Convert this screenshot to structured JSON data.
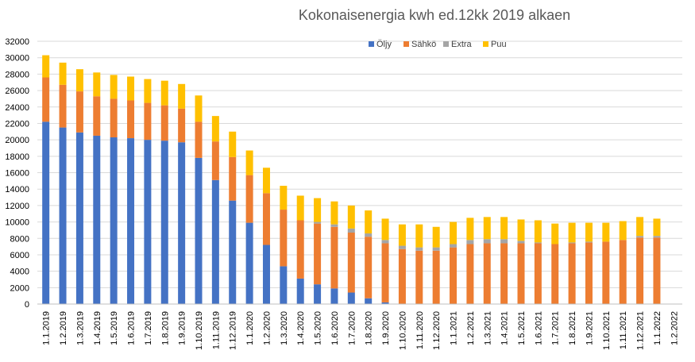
{
  "chart_data": {
    "type": "bar",
    "stacked": true,
    "title": "Kokonaisenergia kwh ed.12kk 2019 alkaen",
    "xlabel": "",
    "ylabel": "",
    "ylim": [
      0,
      32000
    ],
    "yticks": [
      0,
      2000,
      4000,
      6000,
      8000,
      10000,
      12000,
      14000,
      16000,
      18000,
      20000,
      22000,
      24000,
      26000,
      28000,
      30000,
      32000
    ],
    "grid": true,
    "legend_position": "top",
    "categories": [
      "1.1.2019",
      "1.2.2019",
      "1.3.2019",
      "1.4.2019",
      "1.5.2019",
      "1.6.2019",
      "1.7.2019",
      "1.8.2019",
      "1.9.2019",
      "1.10.2019",
      "1.11.2019",
      "1.12.2019",
      "1.1.2020",
      "1.2.2020",
      "1.3.2020",
      "1.4.2020",
      "1.5.2020",
      "1.6.2020",
      "1.7.2020",
      "1.8.2020",
      "1.9.2020",
      "1.10.2020",
      "1.11.2020",
      "1.12.2020",
      "1.1.2021",
      "1.2.2021",
      "1.3.2021",
      "1.4.2021",
      "1.5.2021",
      "1.6.2021",
      "1.7.2021",
      "1.8.2021",
      "1.9.2021",
      "1.10.2021",
      "1.11.2021",
      "1.12.2021",
      "1.1.2022",
      "1.2.2022"
    ],
    "series": [
      {
        "name": "Öljy",
        "color": "#4472c4",
        "values": [
          22200,
          21500,
          20900,
          20500,
          20300,
          20200,
          20000,
          19900,
          19700,
          17800,
          15100,
          12600,
          9900,
          7200,
          4600,
          3100,
          2400,
          1900,
          1400,
          700,
          200,
          0,
          0,
          0,
          0,
          0,
          0,
          0,
          0,
          0,
          0,
          0,
          0,
          0,
          0,
          0,
          0,
          0
        ]
      },
      {
        "name": "Sähkö",
        "color": "#ed7d31",
        "values": [
          5400,
          5200,
          5000,
          4800,
          4700,
          4600,
          4500,
          4300,
          4100,
          4400,
          4700,
          5300,
          5800,
          6300,
          6900,
          7100,
          7400,
          7500,
          7300,
          7500,
          7200,
          6700,
          6500,
          6500,
          6900,
          7300,
          7400,
          7400,
          7400,
          7400,
          7300,
          7400,
          7500,
          7600,
          7800,
          8100,
          8100,
          0
        ]
      },
      {
        "name": "Extra",
        "color": "#a5a5a5",
        "values": [
          0,
          0,
          0,
          0,
          0,
          0,
          0,
          0,
          0,
          0,
          0,
          0,
          0,
          0,
          0,
          0,
          200,
          300,
          500,
          400,
          400,
          400,
          400,
          400,
          400,
          500,
          500,
          500,
          300,
          100,
          0,
          100,
          100,
          0,
          0,
          200,
          200,
          0
        ]
      },
      {
        "name": "Puu",
        "color": "#ffc000",
        "values": [
          2700,
          2700,
          2700,
          2900,
          2900,
          2900,
          2900,
          3000,
          3000,
          3200,
          3100,
          3100,
          3000,
          3100,
          2900,
          3000,
          2900,
          2800,
          2800,
          2800,
          2600,
          2600,
          2800,
          2500,
          2700,
          2700,
          2700,
          2700,
          2600,
          2700,
          2500,
          2400,
          2300,
          2300,
          2300,
          2300,
          2100,
          0
        ]
      }
    ]
  }
}
